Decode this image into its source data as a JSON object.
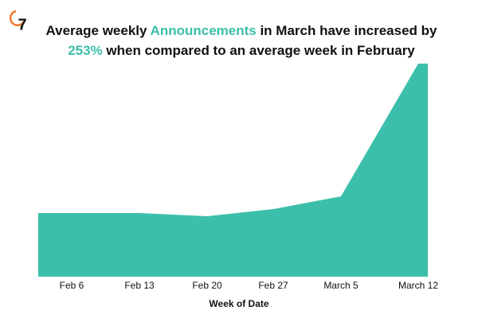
{
  "logo": "7",
  "chart_data": {
    "type": "area",
    "title_lines": [
      [
        {
          "text": "Average weekly "
        },
        {
          "text": "Announcements",
          "highlight": true
        },
        {
          "text": " in March have increased by"
        }
      ],
      [
        {
          "text": "253%",
          "highlight": true
        },
        {
          "text": " when compared to an average week in February"
        }
      ]
    ],
    "highlight_color": "#3cbfaa",
    "categories": [
      "Feb 6",
      "Feb 13",
      "Feb 20",
      "Feb 27",
      "March 5",
      "March 12"
    ],
    "values": [
      80,
      80,
      76,
      85,
      101,
      268
    ],
    "color": "#3cbfaa",
    "ylim": [
      0,
      270
    ],
    "x_label": "Week of Date"
  }
}
